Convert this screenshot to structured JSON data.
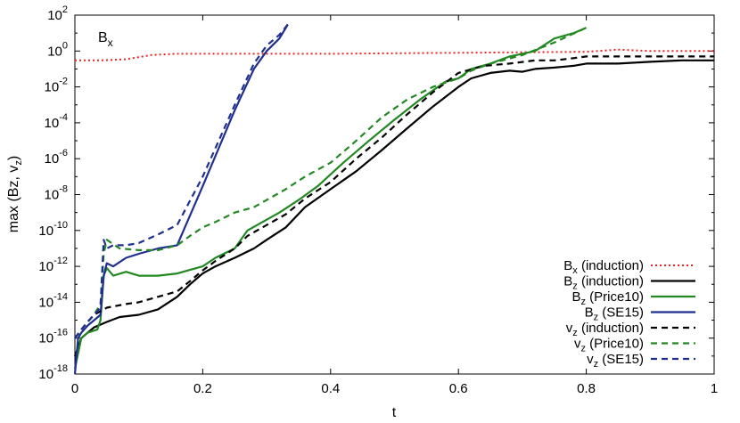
{
  "chart_data": {
    "type": "line",
    "xlabel": "t",
    "ylabel": "max (Bz, v",
    "ylabel_sub": "z",
    "ylabel_close": ")",
    "xlim": [
      0,
      1
    ],
    "ylim": [
      1e-18,
      100
    ],
    "yscale": "log",
    "grid": false,
    "legend_position": "bottom-right",
    "annotation": {
      "base": "B",
      "sub": "x"
    },
    "x_ticks": [
      {
        "value": 0,
        "label": "0"
      },
      {
        "value": 0.2,
        "label": "0.2"
      },
      {
        "value": 0.4,
        "label": "0.4"
      },
      {
        "value": 0.6,
        "label": "0.6"
      },
      {
        "value": 0.8,
        "label": "0.8"
      },
      {
        "value": 1,
        "label": "1"
      }
    ],
    "y_ticks": [
      {
        "value": 1e-18,
        "base": "10",
        "exp": "-18"
      },
      {
        "value": 1e-16,
        "base": "10",
        "exp": "-16"
      },
      {
        "value": 1e-14,
        "base": "10",
        "exp": "-14"
      },
      {
        "value": 1e-12,
        "base": "10",
        "exp": "-12"
      },
      {
        "value": 1e-10,
        "base": "10",
        "exp": "-10"
      },
      {
        "value": 1e-08,
        "base": "10",
        "exp": "-8"
      },
      {
        "value": 1e-06,
        "base": "10",
        "exp": "-6"
      },
      {
        "value": 0.0001,
        "base": "10",
        "exp": "-4"
      },
      {
        "value": 0.01,
        "base": "10",
        "exp": "-2"
      },
      {
        "value": 1,
        "base": "10",
        "exp": "0"
      },
      {
        "value": 100,
        "base": "10",
        "exp": "2"
      }
    ],
    "series": [
      {
        "label": {
          "base": "B",
          "sub": "x",
          "rest": " (induction)"
        },
        "color": "#ee2222",
        "dash": "dotted",
        "x": [
          0,
          0.04,
          0.08,
          0.12,
          0.16,
          0.2,
          0.3,
          0.4,
          0.5,
          0.6,
          0.7,
          0.8,
          0.85,
          0.9,
          0.95,
          1.0
        ],
        "y": [
          0.3,
          0.3,
          0.35,
          0.6,
          0.7,
          0.7,
          0.7,
          0.7,
          0.75,
          0.8,
          0.85,
          0.9,
          1.2,
          1.0,
          1.0,
          1.0
        ]
      },
      {
        "label": {
          "base": "B",
          "sub": "z",
          "rest": " (induction)"
        },
        "color": "#000000",
        "dash": "solid",
        "x": [
          0,
          0.005,
          0.01,
          0.02,
          0.03,
          0.05,
          0.07,
          0.1,
          0.13,
          0.16,
          0.18,
          0.2,
          0.22,
          0.25,
          0.28,
          0.3,
          0.33,
          0.36,
          0.4,
          0.44,
          0.48,
          0.52,
          0.56,
          0.6,
          0.62,
          0.65,
          0.68,
          0.7,
          0.72,
          0.75,
          0.78,
          0.8,
          0.85,
          0.9,
          0.95,
          1.0
        ],
        "y": [
          1e-17,
          3e-17,
          1e-16,
          2e-16,
          4e-16,
          8e-16,
          1.5e-15,
          2e-15,
          4e-15,
          2e-14,
          1e-13,
          4e-13,
          1e-12,
          3e-12,
          1e-11,
          3e-11,
          1.5e-10,
          2e-09,
          2e-08,
          2e-07,
          3e-06,
          5e-05,
          0.0008,
          0.01,
          0.03,
          0.06,
          0.08,
          0.07,
          0.1,
          0.12,
          0.15,
          0.2,
          0.2,
          0.25,
          0.3,
          0.3
        ]
      },
      {
        "label": {
          "base": "B",
          "sub": "z",
          "rest": " (Price10)"
        },
        "color": "#228822",
        "dash": "solid",
        "x": [
          0,
          0.01,
          0.02,
          0.035,
          0.04,
          0.045,
          0.05,
          0.06,
          0.08,
          0.1,
          0.13,
          0.16,
          0.2,
          0.22,
          0.25,
          0.27,
          0.3,
          0.32,
          0.35,
          0.38,
          0.42,
          0.46,
          0.5,
          0.54,
          0.58,
          0.6,
          0.62,
          0.65,
          0.68,
          0.72,
          0.75,
          0.78,
          0.8
        ],
        "y": [
          2e-18,
          1e-16,
          2e-16,
          3e-16,
          1e-15,
          3e-13,
          8e-13,
          3e-13,
          5e-13,
          3e-13,
          3e-13,
          4e-13,
          1e-12,
          3e-12,
          1e-11,
          1e-10,
          4e-10,
          1e-09,
          5e-09,
          3e-08,
          6e-07,
          1e-05,
          0.00015,
          0.002,
          0.02,
          0.03,
          0.1,
          0.2,
          0.5,
          1.0,
          5.0,
          10.0,
          20.0
        ]
      },
      {
        "label": {
          "base": "B",
          "sub": "z",
          "rest": " (SE15)"
        },
        "color": "#1f2f8f",
        "dash": "solid",
        "x": [
          0,
          0.005,
          0.01,
          0.02,
          0.03,
          0.04,
          0.045,
          0.05,
          0.06,
          0.08,
          0.1,
          0.13,
          0.16,
          0.2,
          0.25,
          0.28,
          0.3,
          0.32,
          0.333
        ],
        "y": [
          1e-18,
          1e-16,
          2e-16,
          5e-16,
          1e-15,
          2e-15,
          3e-13,
          1.5e-12,
          1e-12,
          3e-12,
          5e-12,
          1e-11,
          1.5e-11,
          3e-08,
          0.0005,
          0.1,
          1.0,
          5.0,
          30.0
        ]
      },
      {
        "label": {
          "base": "v",
          "sub": "z",
          "rest": " (induction)"
        },
        "color": "#000000",
        "dash": "dashed",
        "x": [
          0,
          0.01,
          0.02,
          0.03,
          0.05,
          0.08,
          0.1,
          0.13,
          0.16,
          0.18,
          0.2,
          0.22,
          0.25,
          0.27,
          0.3,
          0.33,
          0.36,
          0.4,
          0.44,
          0.48,
          0.52,
          0.56,
          0.6,
          0.64,
          0.68,
          0.72,
          0.75,
          0.78,
          0.8,
          0.85,
          0.9,
          0.95,
          1.0
        ],
        "y": [
          1e-16,
          3e-16,
          8e-16,
          2e-15,
          5e-15,
          8e-15,
          1e-14,
          2e-14,
          4e-14,
          1.5e-13,
          6e-13,
          2e-12,
          1e-11,
          5e-11,
          2e-10,
          8e-10,
          6e-09,
          5e-08,
          1e-06,
          1.5e-05,
          0.0003,
          0.005,
          0.06,
          0.15,
          0.2,
          0.3,
          0.3,
          0.4,
          0.5,
          0.5,
          0.5,
          0.5,
          0.5
        ]
      },
      {
        "label": {
          "base": "v",
          "sub": "z",
          "rest": " (Price10)"
        },
        "color": "#228822",
        "dash": "dashed",
        "x": [
          0,
          0.01,
          0.02,
          0.03,
          0.04,
          0.045,
          0.05,
          0.07,
          0.1,
          0.13,
          0.16,
          0.18,
          0.2,
          0.22,
          0.25,
          0.28,
          0.3,
          0.33,
          0.36,
          0.4,
          0.44,
          0.48,
          0.52,
          0.56,
          0.6,
          0.62,
          0.65,
          0.7,
          0.75,
          0.8
        ],
        "y": [
          1e-16,
          3e-16,
          8e-16,
          2e-15,
          8e-15,
          5e-12,
          3e-11,
          1e-11,
          8e-12,
          8e-12,
          1.5e-11,
          5e-11,
          1.5e-10,
          3e-10,
          1e-09,
          2e-09,
          5e-09,
          2e-08,
          1e-07,
          6e-07,
          1e-05,
          0.0002,
          0.002,
          0.01,
          0.03,
          0.08,
          0.2,
          0.6,
          3.0,
          20.0
        ]
      },
      {
        "label": {
          "base": "v",
          "sub": "z",
          "rest": " (SE15)"
        },
        "color": "#1f2f8f",
        "dash": "dashed",
        "x": [
          0,
          0.01,
          0.02,
          0.03,
          0.04,
          0.045,
          0.05,
          0.06,
          0.08,
          0.1,
          0.13,
          0.16,
          0.2,
          0.25,
          0.28,
          0.3,
          0.32,
          0.333
        ],
        "y": [
          1e-16,
          3e-16,
          8e-16,
          2e-15,
          5e-15,
          3e-11,
          1e-11,
          1.5e-11,
          1.5e-11,
          2e-11,
          6e-11,
          2e-10,
          1e-07,
          0.001,
          0.2,
          2.0,
          8.0,
          30.0
        ]
      }
    ]
  }
}
